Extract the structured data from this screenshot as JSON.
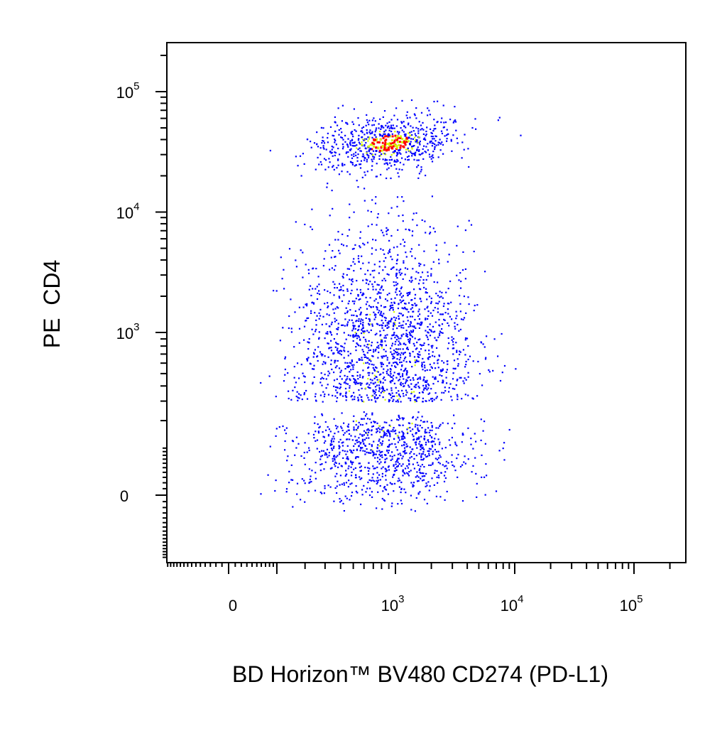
{
  "chart_data": {
    "type": "scatter",
    "title": "",
    "xlabel": "BD Horizon™ BV480 CD274 (PD-L1)",
    "ylabel": "PE  CD4",
    "xscale": "biexponential",
    "yscale": "biexponential",
    "xlim": [
      -200,
      200000
    ],
    "ylim": [
      -150,
      250000
    ],
    "x_tick_labels": [
      {
        "value": 0,
        "base": "0",
        "exp": ""
      },
      {
        "value": 1000,
        "base": "10",
        "exp": "3"
      },
      {
        "value": 10000,
        "base": "10",
        "exp": "4"
      },
      {
        "value": 100000,
        "base": "10",
        "exp": "5"
      }
    ],
    "y_tick_labels": [
      {
        "value": 0,
        "base": "0",
        "exp": ""
      },
      {
        "value": 1000,
        "base": "10",
        "exp": "3"
      },
      {
        "value": 10000,
        "base": "10",
        "exp": "4"
      },
      {
        "value": 100000,
        "base": "10",
        "exp": "5"
      }
    ],
    "grid": false,
    "legend": "none",
    "colors": {
      "low_density": "#0000ff",
      "mid_density": "#d4ff00",
      "high_density": "#ff0000",
      "frame": "#000000"
    },
    "populations": [
      {
        "label": "",
        "x_center": 900,
        "y_center": 38000,
        "x_spread_decades": 0.28,
        "y_spread_decades": 0.12,
        "events": 700,
        "density": "high"
      },
      {
        "label": "",
        "x_center": 850,
        "y_center": 500,
        "x_spread_decades": 0.35,
        "y_spread_decades": 0.55,
        "events": 2600,
        "density": "medium"
      }
    ]
  }
}
